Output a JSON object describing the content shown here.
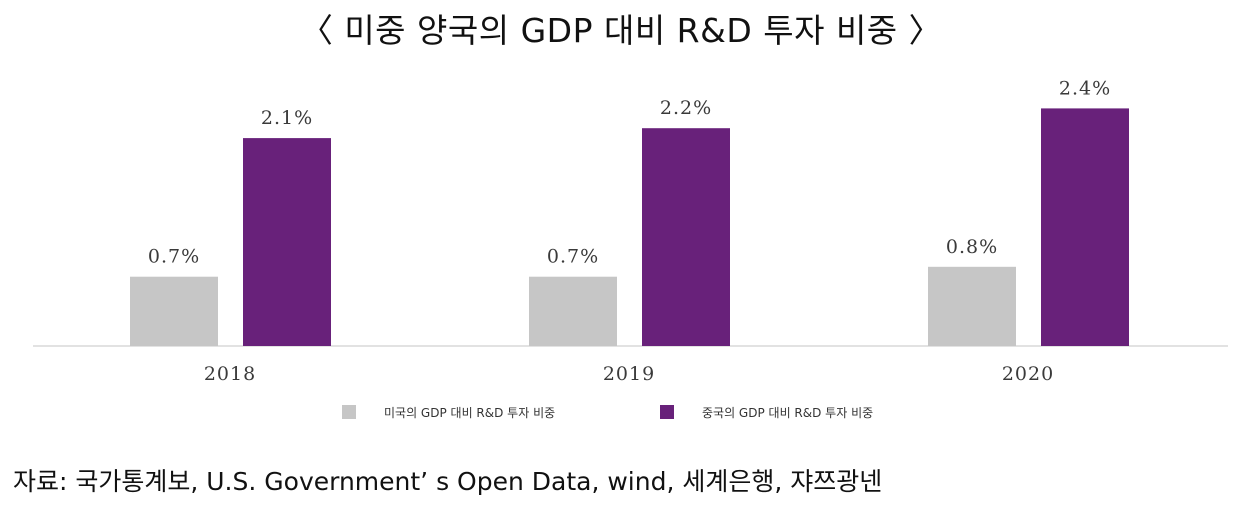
{
  "chart_data": {
    "type": "bar",
    "title": "〈 미중 양국의 GDP 대비 R&D 투자 비중 〉",
    "categories": [
      "2018",
      "2019",
      "2020"
    ],
    "series": [
      {
        "name": "미국의 GDP 대비 R&D 투자 비중",
        "values": [
          0.7,
          0.7,
          0.8
        ],
        "labels": [
          "0.7%",
          "0.7%",
          "0.8%"
        ],
        "color": "#c6c6c6"
      },
      {
        "name": "중국의 GDP 대비 R&D 투자 비중",
        "values": [
          2.1,
          2.2,
          2.4
        ],
        "labels": [
          "2.1%",
          "2.2%",
          "2.4%"
        ],
        "color": "#68217a"
      }
    ],
    "ylim": [
      0,
      2.4
    ],
    "grid": false,
    "legend": "bottom-center",
    "xlabel": "",
    "ylabel": ""
  },
  "source_note": "자료: 국가통계보, U.S. Government’ s Open Data, wind, 세계은행, 쟈쯔광넨",
  "colors": {
    "baseline": "#d8d8d8"
  }
}
